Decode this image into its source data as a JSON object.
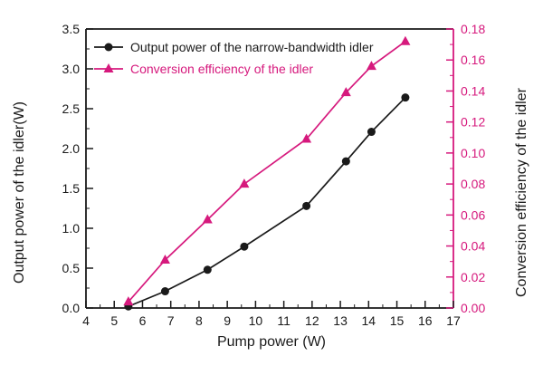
{
  "colors": {
    "power_series": "#1a1a1a",
    "efficiency_series": "#d6197d",
    "background": "#ffffff"
  },
  "chart_data": {
    "type": "line",
    "title": "",
    "xlabel": "Pump power (W)",
    "ylabel_left": "Output power of the idler(W)",
    "ylabel_right": "Conversion efficiency of the idler",
    "xlim": [
      4,
      17
    ],
    "ylim_left": [
      0,
      3.5
    ],
    "ylim_right": [
      0,
      0.18
    ],
    "xticks": [
      "4",
      "5",
      "6",
      "7",
      "8",
      "9",
      "10",
      "11",
      "12",
      "13",
      "14",
      "15",
      "16",
      "17"
    ],
    "yticks_left": [
      "0.0",
      "0.5",
      "1.0",
      "1.5",
      "2.0",
      "2.5",
      "3.0",
      "3.5"
    ],
    "yticks_right": [
      "0.00",
      "0.02",
      "0.04",
      "0.06",
      "0.08",
      "0.10",
      "0.12",
      "0.14",
      "0.16",
      "0.18"
    ],
    "minor_step_x": 0.5,
    "minor_step_left": 0.25,
    "minor_step_right": 0.01,
    "grid": false,
    "legend_position": "top-left",
    "x": [
      5.5,
      6.8,
      8.3,
      9.6,
      11.8,
      13.2,
      14.1,
      15.3
    ],
    "series": [
      {
        "name": "Output power of the narrow-bandwidth idler",
        "axis": "left",
        "marker": "circle",
        "color": "#1a1a1a",
        "values": [
          0.02,
          0.21,
          0.48,
          0.77,
          1.28,
          1.84,
          2.21,
          2.64
        ]
      },
      {
        "name": "Conversion efficiency of the idler",
        "axis": "right",
        "marker": "triangle",
        "color": "#d6197d",
        "values": [
          0.004,
          0.031,
          0.057,
          0.08,
          0.109,
          0.139,
          0.156,
          0.172
        ]
      }
    ]
  }
}
